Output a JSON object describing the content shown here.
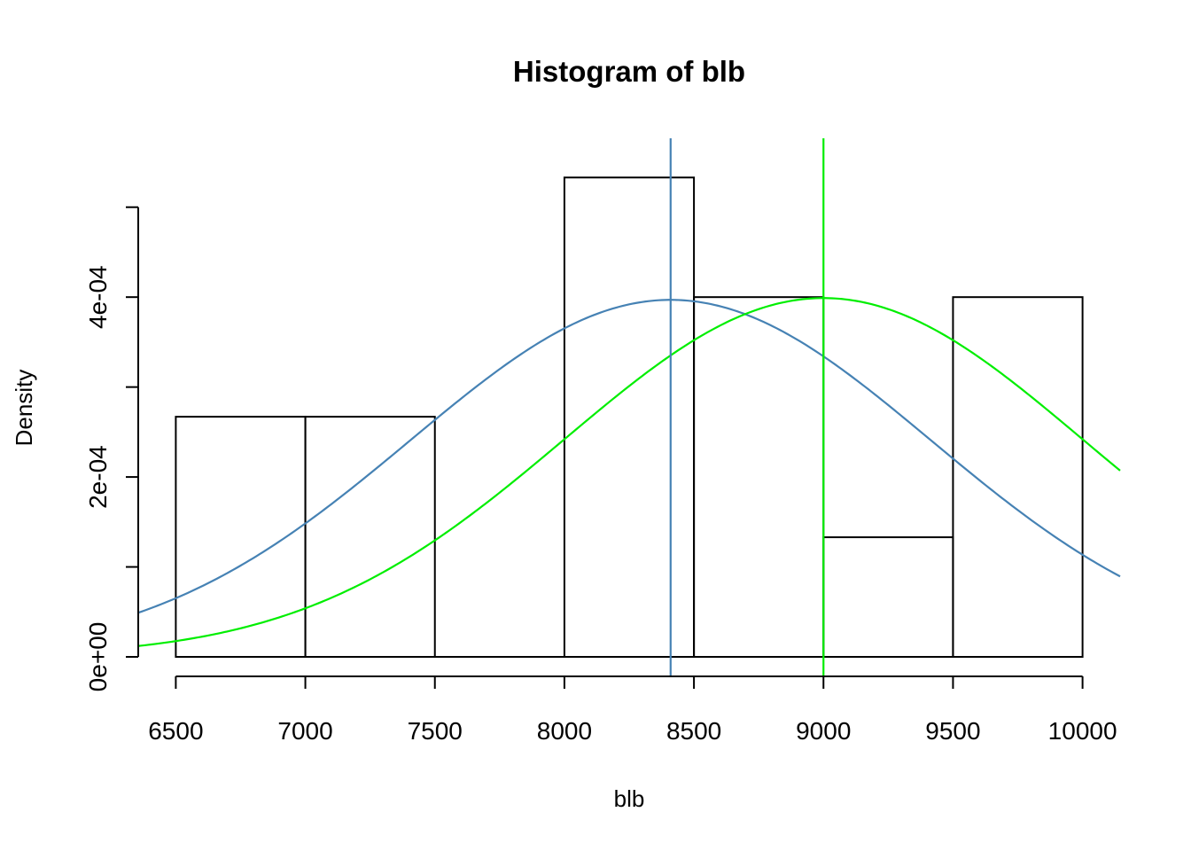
{
  "chart_data": {
    "type": "bar",
    "title": "Histogram of blb",
    "xlabel": "blb",
    "ylabel": "Density",
    "xlim": [
      6355,
      10145
    ],
    "ylim": [
      0,
      0.00055
    ],
    "x_ticks": [
      6500,
      7000,
      7500,
      8000,
      8500,
      9000,
      9500,
      10000
    ],
    "x_tick_labels": [
      "6500",
      "7000",
      "7500",
      "8000",
      "8500",
      "9000",
      "9500",
      "10000"
    ],
    "y_ticks": [
      0,
      0.0001,
      0.0002,
      0.0003,
      0.0004,
      0.0005
    ],
    "y_tick_labels": [
      "0e+00",
      "",
      "2e-04",
      "",
      "4e-04",
      ""
    ],
    "bins": [
      {
        "x0": 6500,
        "x1": 7000,
        "density": 0.000267
      },
      {
        "x0": 7000,
        "x1": 7500,
        "density": 0.000267
      },
      {
        "x0": 7500,
        "x1": 8000,
        "density": 0
      },
      {
        "x0": 8000,
        "x1": 8500,
        "density": 0.000533
      },
      {
        "x0": 8500,
        "x1": 9000,
        "density": 0.0004
      },
      {
        "x0": 9000,
        "x1": 9500,
        "density": 0.000133
      },
      {
        "x0": 9500,
        "x1": 10000,
        "density": 0.0004
      }
    ],
    "curves": [
      {
        "type": "normal-density",
        "mean": 8410,
        "sd": 1005,
        "color": "#4682B4"
      },
      {
        "type": "normal-density",
        "mean": 9000,
        "sd": 1000,
        "color": "#00EE00"
      }
    ],
    "vlines": [
      {
        "x": 8410,
        "color": "#4682B4"
      },
      {
        "x": 9000,
        "color": "#00EE00"
      }
    ],
    "grid": false,
    "legend": "none"
  }
}
